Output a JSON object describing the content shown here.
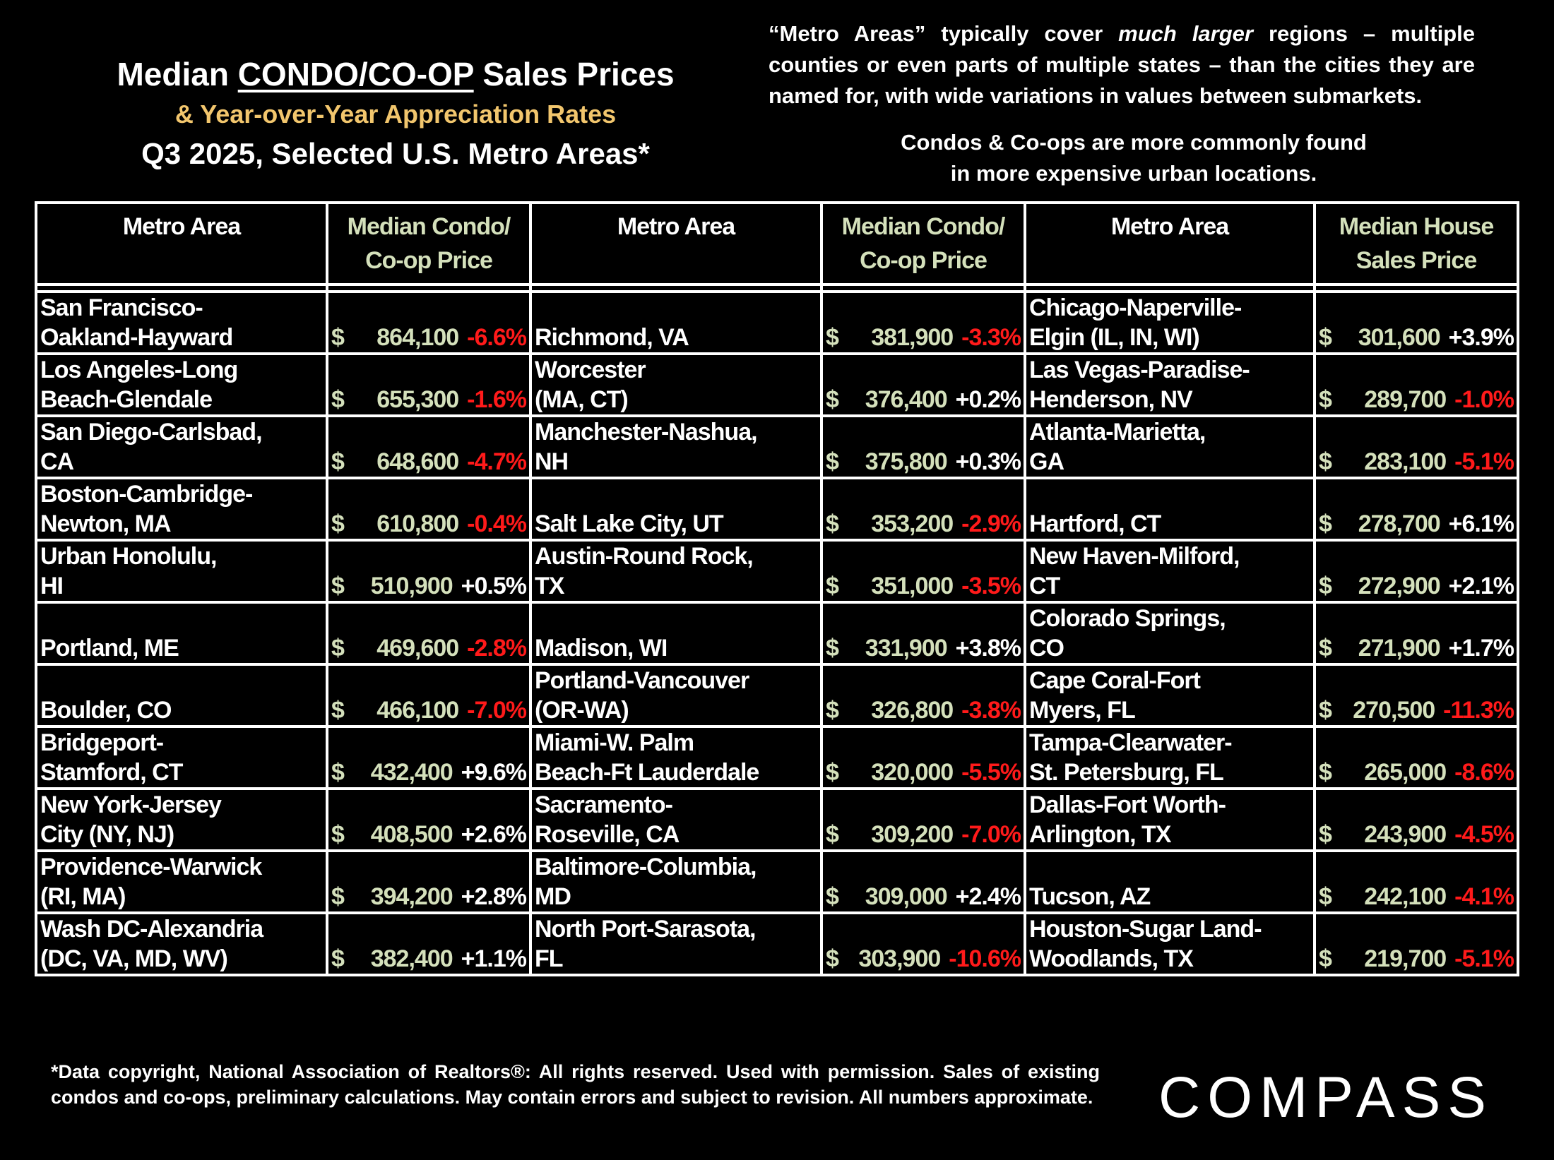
{
  "title": {
    "prefix": "Median ",
    "underlined": "CONDO/CO-OP",
    "suffix": " Sales Prices",
    "subtitle": "& Year-over-Year Appreciation Rates",
    "line3": "Q3 2025, Selected U.S. Metro Areas*"
  },
  "notes": {
    "metro_pre": "“Metro Areas” typically cover ",
    "metro_em": "much larger",
    "metro_post": " regions – multiple counties or even parts of multiple states – than the cities they are named for, with wide variations in values between submarkets.",
    "condo_line1": "Condos & Co-ops are more commonly found",
    "condo_line2": "in more expensive urban locations."
  },
  "headers": {
    "metro": "Metro Area",
    "price_condo_1": "Median Condo/",
    "price_condo_2": "Co-op Price",
    "price_house_1": "Median House",
    "price_house_2": "Sales Price"
  },
  "colors": {
    "price": "#d4e0bb",
    "negative": "#ff1a1a",
    "subtitle": "#f2c66d"
  },
  "groups": [
    [
      [
        "San Francisco-",
        "Oakland-Hayward",
        "864,100",
        "-6.6%"
      ],
      [
        "Los Angeles-Long",
        "Beach-Glendale",
        "655,300",
        "-1.6%"
      ],
      [
        "San Diego-Carlsbad,",
        "CA",
        "648,600",
        "-4.7%"
      ],
      [
        "Boston-Cambridge-",
        "Newton, MA",
        "610,800",
        "-0.4%"
      ],
      [
        "Urban Honolulu,",
        "HI",
        "510,900",
        "+0.5%"
      ],
      [
        "",
        "Portland, ME",
        "469,600",
        "-2.8%"
      ],
      [
        "",
        "Boulder, CO",
        "466,100",
        "-7.0%"
      ],
      [
        "Bridgeport-",
        "Stamford, CT",
        "432,400",
        "+9.6%"
      ],
      [
        "New York-Jersey",
        "City (NY, NJ)",
        "408,500",
        "+2.6%"
      ],
      [
        "Providence-Warwick",
        "(RI, MA)",
        "394,200",
        "+2.8%"
      ],
      [
        "Wash DC-Alexandria",
        " (DC, VA, MD, WV)",
        "382,400",
        "+1.1%"
      ]
    ],
    [
      [
        "",
        "Richmond, VA",
        "381,900",
        "-3.3%"
      ],
      [
        "Worcester",
        "(MA, CT)",
        "376,400",
        "+0.2%"
      ],
      [
        "Manchester-Nashua,",
        "NH",
        "375,800",
        "+0.3%"
      ],
      [
        "",
        "Salt Lake City, UT",
        "353,200",
        "-2.9%"
      ],
      [
        "Austin-Round Rock,",
        "TX",
        "351,000",
        "-3.5%"
      ],
      [
        "",
        "Madison, WI",
        "331,900",
        "+3.8%"
      ],
      [
        "Portland-Vancouver",
        "(OR-WA)",
        "326,800",
        "-3.8%"
      ],
      [
        "Miami-W. Palm",
        "Beach-Ft Lauderdale",
        "320,000",
        "-5.5%"
      ],
      [
        "Sacramento-",
        "Roseville, CA",
        "309,200",
        "-7.0%"
      ],
      [
        "Baltimore-Columbia,",
        "MD",
        "309,000",
        "+2.4%"
      ],
      [
        "North Port-Sarasota,",
        "FL",
        "303,900",
        "-10.6%"
      ]
    ],
    [
      [
        "Chicago-Naperville-",
        "Elgin (IL, IN, WI)",
        "301,600",
        "+3.9%"
      ],
      [
        "Las Vegas-Paradise-",
        "Henderson, NV",
        "289,700",
        "-1.0%"
      ],
      [
        "Atlanta-Marietta,",
        "GA",
        "283,100",
        "-5.1%"
      ],
      [
        "",
        "Hartford, CT",
        "278,700",
        "+6.1%"
      ],
      [
        "New Haven-Milford,",
        "CT",
        "272,900",
        "+2.1%"
      ],
      [
        "Colorado Springs,",
        "CO",
        "271,900",
        "+1.7%"
      ],
      [
        "Cape Coral-Fort",
        "Myers, FL",
        "270,500",
        "-11.3%"
      ],
      [
        "Tampa-Clearwater-",
        "St. Petersburg, FL",
        "265,000",
        "-8.6%"
      ],
      [
        "Dallas-Fort Worth-",
        "Arlington, TX",
        "243,900",
        "-4.5%"
      ],
      [
        "",
        "Tucson, AZ",
        "242,100",
        "-4.1%"
      ],
      [
        "Houston-Sugar Land-",
        "Woodlands, TX",
        "219,700",
        "-5.1%"
      ]
    ]
  ],
  "currency": "$",
  "footnote": "*Data copyright, National Association of Realtors®: All rights reserved. Used with permission. Sales of existing condos and co-ops, preliminary calculations. May contain errors and subject to revision. All numbers approximate.",
  "logo": "COMPASS"
}
